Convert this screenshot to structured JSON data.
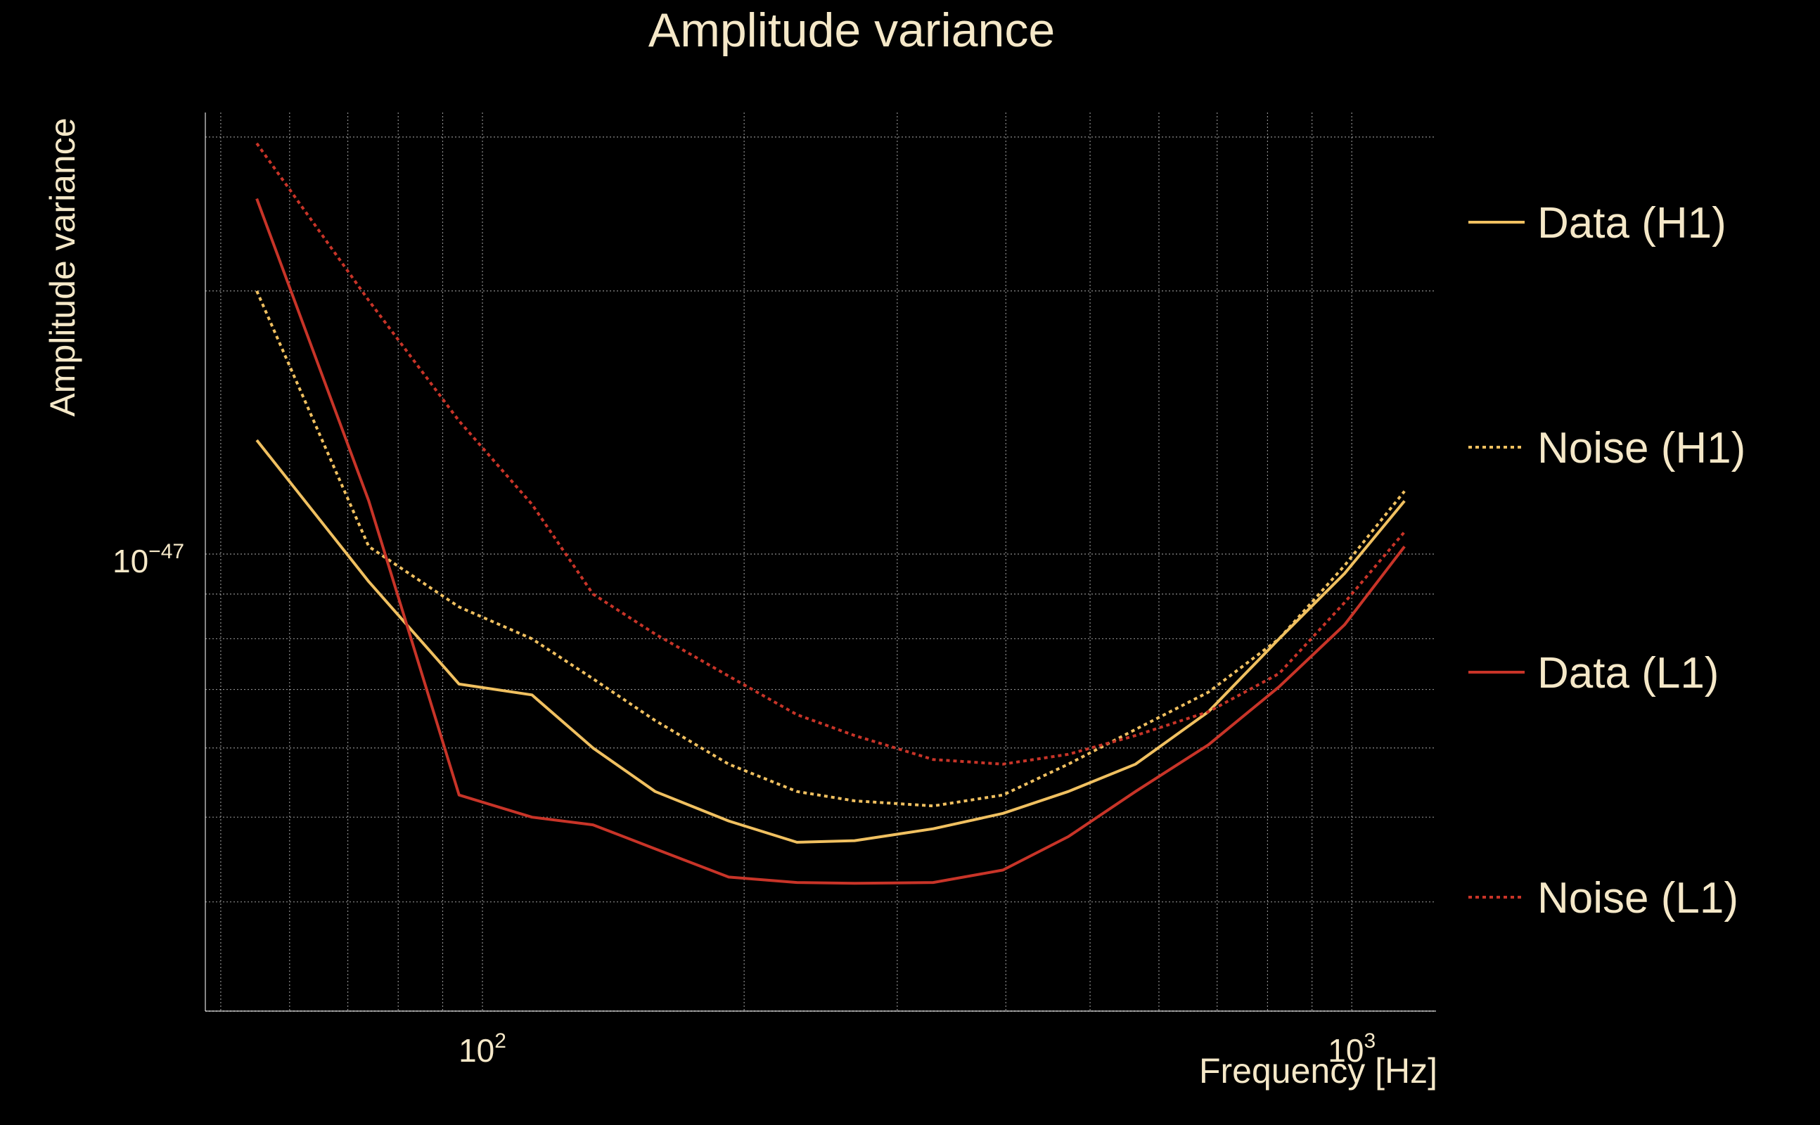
{
  "chart_data": {
    "type": "line",
    "title": "Amplitude variance",
    "xlabel": "Frequency [Hz]",
    "ylabel": "Amplitude variance",
    "x_scale": "log",
    "y_scale": "log",
    "xlim": [
      48,
      1250
    ],
    "ylim": [
      3e-48,
      3.2e-47
    ],
    "grid": true,
    "x_ticks": [
      {
        "value": 100,
        "base": "10",
        "exp": "2"
      },
      {
        "value": 1000,
        "base": "10",
        "exp": "3"
      }
    ],
    "y_ticks": [
      {
        "value": 1e-47,
        "base": "10",
        "exp": "−47"
      }
    ],
    "legend_position": "right",
    "x": [
      55,
      74,
      94,
      114,
      134,
      158,
      192,
      230,
      268,
      330,
      397,
      472,
      564,
      684,
      825,
      981,
      1150
    ],
    "series": [
      {
        "name": "Data (H1)",
        "color": "#f0c060",
        "dash": "solid",
        "values": [
          1.35e-47,
          9.3e-48,
          7.1e-48,
          6.9e-48,
          6e-48,
          5.35e-48,
          4.95e-48,
          4.68e-48,
          4.7e-48,
          4.85e-48,
          5.05e-48,
          5.35e-48,
          5.75e-48,
          6.6e-48,
          8e-48,
          9.5e-48,
          1.15e-47
        ]
      },
      {
        "name": "Noise (H1)",
        "color": "#f0c060",
        "dash": "dotted",
        "values": [
          2e-47,
          1.02e-47,
          8.7e-48,
          8e-48,
          7.2e-48,
          6.45e-48,
          5.75e-48,
          5.35e-48,
          5.22e-48,
          5.15e-48,
          5.3e-48,
          5.75e-48,
          6.3e-48,
          6.95e-48,
          8e-48,
          9.7e-48,
          1.18e-47
        ]
      },
      {
        "name": "Data (L1)",
        "color": "#c83428",
        "dash": "solid",
        "values": [
          2.55e-47,
          1.15e-47,
          5.3e-48,
          5e-48,
          4.9e-48,
          4.6e-48,
          4.27e-48,
          4.21e-48,
          4.2e-48,
          4.21e-48,
          4.35e-48,
          4.75e-48,
          5.35e-48,
          6.05e-48,
          7.05e-48,
          8.3e-48,
          1.02e-47
        ]
      },
      {
        "name": "Noise (L1)",
        "color": "#c83428",
        "dash": "dotted",
        "values": [
          2.95e-47,
          1.95e-47,
          1.42e-47,
          1.14e-47,
          9e-48,
          8.1e-48,
          7.25e-48,
          6.55e-48,
          6.2e-48,
          5.82e-48,
          5.75e-48,
          5.9e-48,
          6.2e-48,
          6.6e-48,
          7.3e-48,
          8.8e-48,
          1.06e-47
        ]
      }
    ]
  }
}
